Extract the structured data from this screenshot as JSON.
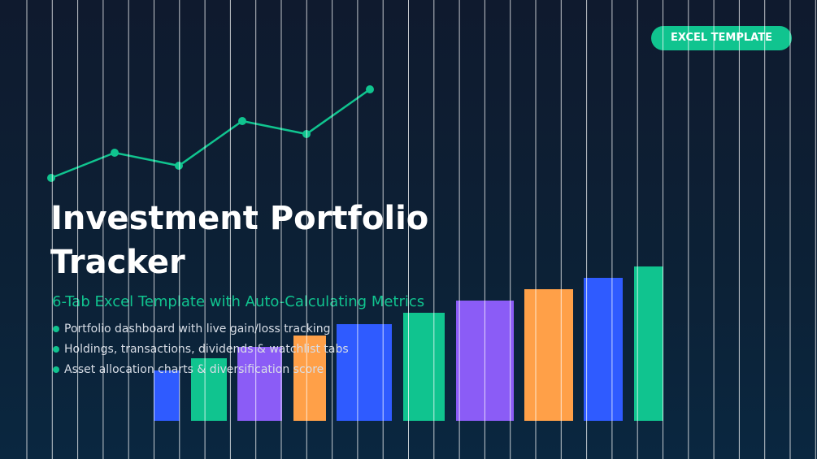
{
  "badge": "EXCEL TEMPLATE",
  "title": "Investment Portfolio Tracker",
  "subtitle": "6-Tab Excel Template with Auto-Calculating Metrics",
  "bullets": [
    "Portfolio dashboard with live gain/loss tracking",
    "Holdings, transactions, dividends & watchlist tabs",
    "Asset allocation charts & diversification score"
  ]
}
